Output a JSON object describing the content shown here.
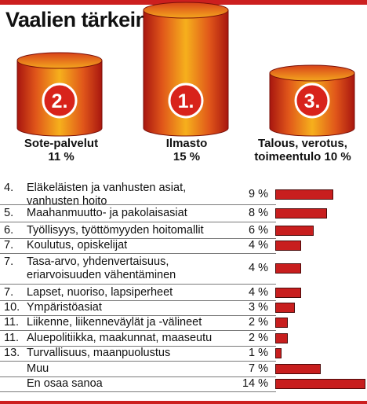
{
  "title": "Vaalien tärkein aihe?",
  "colors": {
    "accent": "#cc1f1f",
    "bar": "#c81e1e",
    "cylinder_dark": "#a8160f",
    "cylinder_light": "#f6b01c",
    "badge": "#d8231b"
  },
  "chart_data": [
    {
      "type": "bar",
      "description_type": "podium",
      "categories": [
        "Sote-palvelut",
        "Ilmasto",
        "Talous, verotus, toimeentulo"
      ],
      "ranks": [
        "2.",
        "1.",
        "3."
      ],
      "values": [
        11,
        15,
        10
      ],
      "labels": [
        "Sote-palvelut",
        "Ilmasto",
        "Talous, verotus,"
      ],
      "labels2": [
        "11 %",
        "15 %",
        "toimeentulo 10 %"
      ]
    },
    {
      "type": "bar",
      "orientation": "horizontal",
      "xlim": [
        0,
        14
      ],
      "rows": [
        {
          "rank": "4.",
          "label": "Eläkeläisten ja vanhusten asiat,",
          "label2": "vanhusten hoito",
          "value": 9,
          "pct": "9 %"
        },
        {
          "rank": "5.",
          "label": "Maahanmuutto- ja pakolaisasiat",
          "value": 8,
          "pct": "8 %"
        },
        {
          "rank": "6.",
          "label": "Työllisyys, työttömyyden hoitomallit",
          "value": 6,
          "pct": "6 %"
        },
        {
          "rank": "7.",
          "label": "Koulutus, opiskelijat",
          "value": 4,
          "pct": "4 %"
        },
        {
          "rank": "7.",
          "label": "Tasa-arvo, yhdenvertaisuus,",
          "label2": "eriarvoisuuden vähentäminen",
          "value": 4,
          "pct": "4 %"
        },
        {
          "rank": "7.",
          "label": "Lapset, nuoriso, lapsiperheet",
          "value": 4,
          "pct": "4 %"
        },
        {
          "rank": "10.",
          "label": "Ympäristöasiat",
          "value": 3,
          "pct": "3 %"
        },
        {
          "rank": "11.",
          "label": "Liikenne, liikenneväylät ja -välineet",
          "value": 2,
          "pct": "2 %"
        },
        {
          "rank": "11.",
          "label": "Aluepolitiikka, maakunnat, maaseutu",
          "value": 2,
          "pct": "2 %"
        },
        {
          "rank": "13.",
          "label": "Turvallisuus, maanpuolustus",
          "value": 1,
          "pct": "1 %"
        },
        {
          "rank": "",
          "label": "Muu",
          "value": 7,
          "pct": "7 %"
        },
        {
          "rank": "",
          "label": "En osaa sanoa",
          "value": 14,
          "pct": "14 %"
        }
      ]
    }
  ]
}
